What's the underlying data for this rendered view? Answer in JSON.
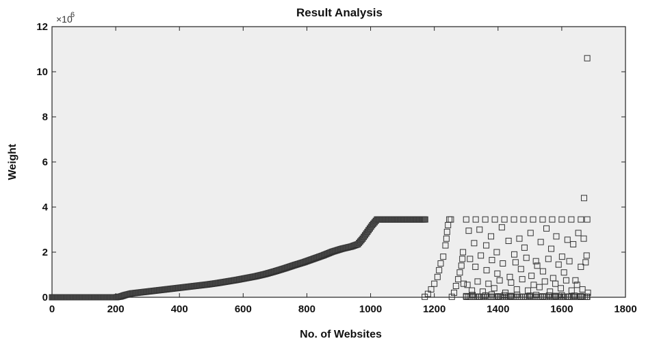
{
  "chart_data": {
    "type": "scatter",
    "title": "Result Analysis",
    "xlabel": "No. of Websites",
    "ylabel": "Weight",
    "y_multiplier_label": "×10",
    "y_multiplier_exponent": "6",
    "xlim": [
      0,
      1800
    ],
    "ylim": [
      0,
      12
    ],
    "x_ticks": [
      0,
      200,
      400,
      600,
      800,
      1000,
      1200,
      1400,
      1600,
      1800
    ],
    "y_ticks": [
      0,
      2,
      4,
      6,
      8,
      10,
      12
    ],
    "marker": "square",
    "grid": false,
    "series": [
      {
        "values_units": "×10^6",
        "points": [
          [
            0,
            0
          ],
          [
            40,
            0
          ],
          [
            80,
            0
          ],
          [
            120,
            0
          ],
          [
            160,
            0
          ],
          [
            200,
            0
          ],
          [
            215,
            0.03
          ],
          [
            230,
            0.1
          ],
          [
            250,
            0.17
          ],
          [
            280,
            0.22
          ],
          [
            310,
            0.27
          ],
          [
            340,
            0.32
          ],
          [
            370,
            0.37
          ],
          [
            400,
            0.42
          ],
          [
            430,
            0.47
          ],
          [
            460,
            0.52
          ],
          [
            490,
            0.57
          ],
          [
            520,
            0.63
          ],
          [
            550,
            0.7
          ],
          [
            580,
            0.77
          ],
          [
            610,
            0.85
          ],
          [
            640,
            0.93
          ],
          [
            670,
            1.03
          ],
          [
            700,
            1.15
          ],
          [
            730,
            1.28
          ],
          [
            760,
            1.42
          ],
          [
            790,
            1.55
          ],
          [
            820,
            1.7
          ],
          [
            850,
            1.85
          ],
          [
            880,
            2.02
          ],
          [
            910,
            2.15
          ],
          [
            940,
            2.25
          ],
          [
            960,
            2.35
          ],
          [
            975,
            2.6
          ],
          [
            990,
            2.9
          ],
          [
            1005,
            3.2
          ],
          [
            1020,
            3.45
          ],
          [
            1040,
            3.45
          ],
          [
            1060,
            3.45
          ],
          [
            1080,
            3.45
          ],
          [
            1100,
            3.45
          ],
          [
            1120,
            3.45
          ],
          [
            1140,
            3.45
          ],
          [
            1160,
            3.45
          ],
          [
            1175,
            3.45
          ],
          [
            1170,
            0.02
          ],
          [
            1180,
            0.15
          ],
          [
            1190,
            0.35
          ],
          [
            1200,
            0.6
          ],
          [
            1210,
            0.9
          ],
          [
            1215,
            1.2
          ],
          [
            1220,
            1.5
          ],
          [
            1228,
            1.8
          ],
          [
            1235,
            2.3
          ],
          [
            1238,
            2.6
          ],
          [
            1240,
            2.9
          ],
          [
            1243,
            3.2
          ],
          [
            1247,
            3.45
          ],
          [
            1252,
            3.45
          ],
          [
            1255,
            0.02
          ],
          [
            1262,
            0.2
          ],
          [
            1268,
            0.5
          ],
          [
            1275,
            0.8
          ],
          [
            1280,
            1.1
          ],
          [
            1285,
            1.4
          ],
          [
            1288,
            1.7
          ],
          [
            1290,
            2.0
          ],
          [
            1292,
            0.6
          ],
          [
            1300,
            3.45
          ],
          [
            1330,
            3.45
          ],
          [
            1360,
            3.45
          ],
          [
            1390,
            3.45
          ],
          [
            1420,
            3.45
          ],
          [
            1450,
            3.45
          ],
          [
            1480,
            3.45
          ],
          [
            1510,
            3.45
          ],
          [
            1540,
            3.45
          ],
          [
            1570,
            3.45
          ],
          [
            1600,
            3.45
          ],
          [
            1630,
            3.45
          ],
          [
            1660,
            3.45
          ],
          [
            1680,
            3.45
          ],
          [
            1308,
            2.95
          ],
          [
            1325,
            2.4
          ],
          [
            1342,
            3.0
          ],
          [
            1363,
            2.3
          ],
          [
            1378,
            2.7
          ],
          [
            1396,
            2.0
          ],
          [
            1412,
            3.1
          ],
          [
            1433,
            2.5
          ],
          [
            1451,
            1.9
          ],
          [
            1467,
            2.6
          ],
          [
            1483,
            2.2
          ],
          [
            1502,
            2.85
          ],
          [
            1519,
            1.6
          ],
          [
            1534,
            2.45
          ],
          [
            1552,
            3.05
          ],
          [
            1567,
            2.15
          ],
          [
            1583,
            2.7
          ],
          [
            1601,
            1.8
          ],
          [
            1618,
            2.55
          ],
          [
            1636,
            2.35
          ],
          [
            1652,
            2.85
          ],
          [
            1669,
            2.6
          ],
          [
            1312,
            1.7
          ],
          [
            1329,
            1.35
          ],
          [
            1346,
            1.85
          ],
          [
            1364,
            1.2
          ],
          [
            1381,
            1.65
          ],
          [
            1398,
            1.05
          ],
          [
            1415,
            1.5
          ],
          [
            1437,
            0.9
          ],
          [
            1455,
            1.55
          ],
          [
            1472,
            1.25
          ],
          [
            1489,
            1.75
          ],
          [
            1505,
            0.95
          ],
          [
            1523,
            1.4
          ],
          [
            1541,
            1.15
          ],
          [
            1558,
            1.7
          ],
          [
            1573,
            0.85
          ],
          [
            1590,
            1.45
          ],
          [
            1607,
            1.1
          ],
          [
            1624,
            1.6
          ],
          [
            1643,
            0.75
          ],
          [
            1660,
            1.35
          ],
          [
            1678,
            1.85
          ],
          [
            1675,
            1.55
          ],
          [
            1304,
            0.55
          ],
          [
            1318,
            0.3
          ],
          [
            1336,
            0.7
          ],
          [
            1352,
            0.25
          ],
          [
            1370,
            0.6
          ],
          [
            1388,
            0.4
          ],
          [
            1405,
            0.75
          ],
          [
            1423,
            0.2
          ],
          [
            1441,
            0.65
          ],
          [
            1459,
            0.35
          ],
          [
            1476,
            0.8
          ],
          [
            1494,
            0.3
          ],
          [
            1512,
            0.55
          ],
          [
            1530,
            0.45
          ],
          [
            1547,
            0.7
          ],
          [
            1563,
            0.25
          ],
          [
            1580,
            0.6
          ],
          [
            1597,
            0.4
          ],
          [
            1614,
            0.75
          ],
          [
            1631,
            0.3
          ],
          [
            1648,
            0.55
          ],
          [
            1665,
            0.35
          ],
          [
            1682,
            0.2
          ],
          [
            1300,
            0.05
          ],
          [
            1320,
            0.1
          ],
          [
            1340,
            0.03
          ],
          [
            1360,
            0.08
          ],
          [
            1380,
            0.12
          ],
          [
            1400,
            0.04
          ],
          [
            1420,
            0.09
          ],
          [
            1440,
            0.06
          ],
          [
            1460,
            0.11
          ],
          [
            1480,
            0.02
          ],
          [
            1500,
            0.07
          ],
          [
            1520,
            0.1
          ],
          [
            1540,
            0.04
          ],
          [
            1560,
            0.08
          ],
          [
            1580,
            0.06
          ],
          [
            1600,
            0.09
          ],
          [
            1620,
            0.03
          ],
          [
            1640,
            0.07
          ],
          [
            1660,
            0.05
          ],
          [
            1680,
            0.02
          ],
          [
            1670,
            4.4
          ],
          [
            1680,
            10.6
          ]
        ]
      }
    ]
  }
}
